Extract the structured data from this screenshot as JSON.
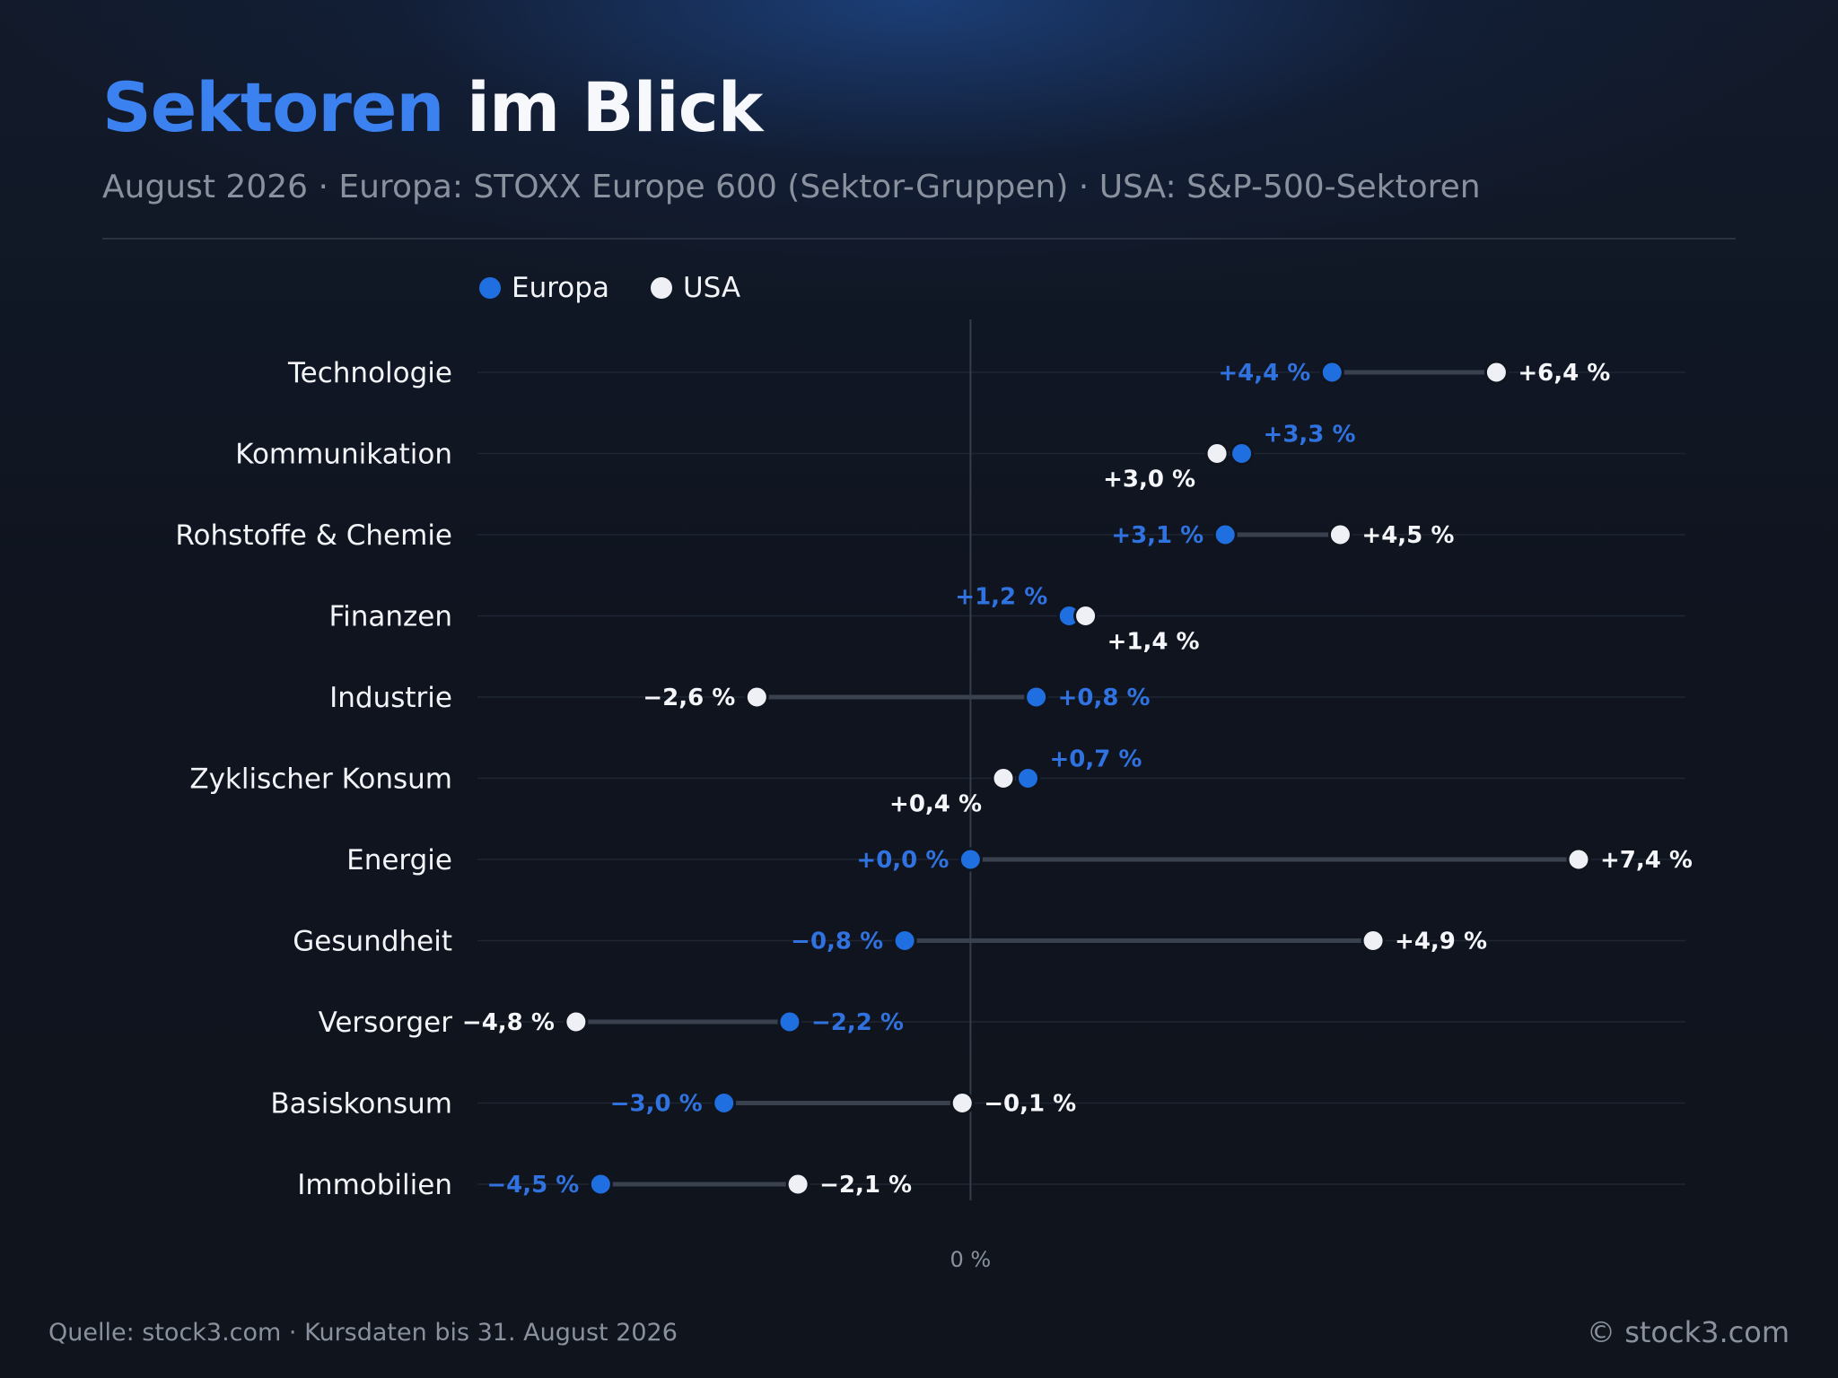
{
  "header": {
    "title_accent": "Sektoren",
    "title_rest": " im Blick",
    "subtitle": "August 2026 · Europa: STOXX Europe 600 (Sektor-Gruppen) · USA: S&P-500-Sektoren"
  },
  "colors": {
    "europa": "#1f6fe0",
    "europa_label": "#2f72e0",
    "usa": "#eef0f5",
    "usa_label": "#f4f6fa"
  },
  "chart_data": {
    "type": "scatter",
    "title": "Sektoren im Blick",
    "subtitle": "August 2026 · Europa: STOXX Europe 600 (Sektor-Gruppen) · USA: S&P-500-Sektoren",
    "categories": [
      "Technologie",
      "Kommunikation",
      "Rohstoffe & Chemie",
      "Finanzen",
      "Industrie",
      "Zyklischer Konsum",
      "Energie",
      "Gesundheit",
      "Versorger",
      "Basiskonsum",
      "Immobilien"
    ],
    "series": [
      {
        "name": "Europa",
        "values": [
          4.4,
          3.3,
          3.1,
          1.2,
          0.8,
          0.7,
          0.0,
          -0.8,
          -2.2,
          -3.0,
          -4.5
        ],
        "labels": [
          "+4,4 %",
          "+3,3 %",
          "+3,1 %",
          "+1,2 %",
          "+0,8 %",
          "+0,7 %",
          "+0,0 %",
          "−0,8 %",
          "−2,2 %",
          "−3,0 %",
          "−4,5 %"
        ]
      },
      {
        "name": "USA",
        "values": [
          6.4,
          3.0,
          4.5,
          1.4,
          -2.6,
          0.4,
          7.4,
          4.9,
          -4.8,
          -0.1,
          -2.1
        ],
        "labels": [
          "+6,4 %",
          "+3,0 %",
          "+4,5 %",
          "+1,4 %",
          "−2,6 %",
          "+0,4 %",
          "+7,4 %",
          "+4,9 %",
          "−4,8 %",
          "−0,1 %",
          "−2,1 %"
        ]
      }
    ],
    "xlim": [
      -6,
      8.7
    ],
    "zero_label": "0 %",
    "legend_position": "top-left",
    "grid": "horizontal"
  },
  "footer": {
    "source": "Quelle: stock3.com · Kursdaten bis 31. August 2026",
    "brand": "© stock3.com"
  }
}
